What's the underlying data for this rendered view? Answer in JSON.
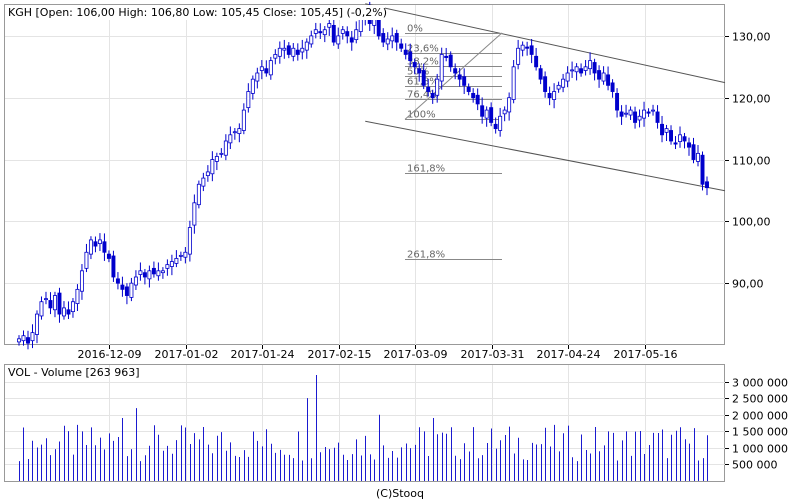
{
  "header": {
    "price_title": "KGH [Open: 106,00  High: 106,80  Low: 105,45  Close: 105,45] (-0,2%)",
    "volume_title": "VOL - Volume [263 963]",
    "credit": "(C)Stooq"
  },
  "colors": {
    "up": "#1a1aa8",
    "down": "#0000cc",
    "volume": "#1a1ad0",
    "grid": "#e4e4e4",
    "trend": "#555555",
    "fib": "#888888"
  },
  "chart_data": [
    {
      "type": "candlestick",
      "symbol": "KGH",
      "ylim": [
        80,
        135
      ],
      "y_ticks": [
        "90,00",
        "100,00",
        "110,00",
        "120,00",
        "130,00"
      ],
      "x_ticks": [
        "2016-12-09",
        "2017-01-02",
        "2017-01-24",
        "2017-02-15",
        "2017-03-09",
        "2017-03-31",
        "2017-04-24",
        "2017-05-16"
      ],
      "grid": true,
      "closes": [
        81,
        81.5,
        80.3,
        82,
        85,
        87,
        87.5,
        86,
        88,
        85,
        86,
        85,
        87,
        89,
        92,
        95,
        97,
        96,
        97,
        95,
        94,
        91,
        90,
        89,
        88,
        90,
        91,
        92,
        91,
        92,
        91.5,
        92,
        92,
        93,
        93.5,
        94,
        94.5,
        95,
        99,
        103,
        106,
        107,
        108,
        110,
        110.5,
        111,
        113,
        114,
        114.5,
        115,
        118,
        121,
        123,
        124,
        125,
        124,
        126,
        127,
        128,
        128,
        127,
        128,
        127,
        128,
        129,
        130,
        131,
        130.5,
        131,
        132,
        129,
        130,
        131,
        130,
        129,
        131,
        133,
        134,
        132,
        133,
        130,
        129,
        129.5,
        130,
        129,
        128,
        127,
        126,
        125,
        124,
        122,
        121,
        120,
        123,
        127,
        126.5,
        125,
        124,
        123,
        122,
        121,
        120,
        119,
        117,
        118,
        116,
        115,
        117,
        118,
        120,
        125,
        128,
        128.5,
        128,
        127,
        125,
        123,
        121,
        120,
        121,
        122,
        123,
        124,
        124.5,
        125,
        124,
        125,
        126,
        124,
        123,
        124,
        122,
        121,
        118,
        117,
        117.5,
        118,
        116,
        117,
        118,
        117.5,
        118,
        116,
        114,
        115,
        113,
        112.5,
        114,
        113,
        112,
        110,
        111,
        106,
        105.45
      ],
      "fibonacci": {
        "levels": [
          "0%",
          "23,6%",
          "38,2%",
          "50%",
          "61,8%",
          "76,4%",
          "100%",
          "161,8%",
          "261,8%"
        ],
        "high": 130.5,
        "low": 116.5
      }
    },
    {
      "type": "bar",
      "name": "Volume",
      "ylim": [
        0,
        3500000
      ],
      "y_ticks": [
        "500 000",
        "1 000 000",
        "1 500 000",
        "2 000 000",
        "2 500 000",
        "3 000 000"
      ]
    }
  ]
}
